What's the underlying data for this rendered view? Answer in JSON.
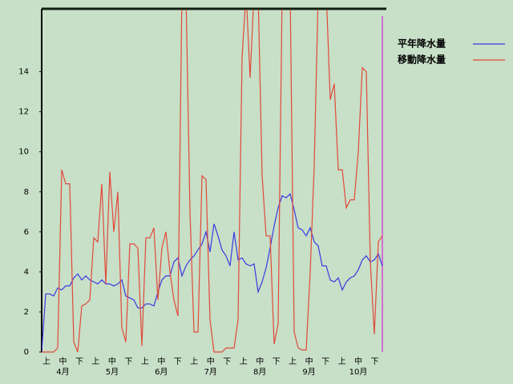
{
  "chart_data": {
    "type": "line",
    "series": [
      {
        "name": "平年降水量",
        "color": "#3a3ae0",
        "values": [
          0,
          2.9,
          2.9,
          2.8,
          3.2,
          3.1,
          3.3,
          3.3,
          3.7,
          3.9,
          3.6,
          3.8,
          3.6,
          3.5,
          3.4,
          3.6,
          3.4,
          3.4,
          3.3,
          3.4,
          3.6,
          2.8,
          2.7,
          2.6,
          2.2,
          2.2,
          2.4,
          2.4,
          2.3,
          3.0,
          3.6,
          3.8,
          3.8,
          4.5,
          4.7,
          3.8,
          4.3,
          4.6,
          4.8,
          5.1,
          5.4,
          6.0,
          5.0,
          6.4,
          5.8,
          5.1,
          4.8,
          4.3,
          6.0,
          4.6,
          4.7,
          4.4,
          4.3,
          4.4,
          3.0,
          3.5,
          4.2,
          5.2,
          6.3,
          7.2,
          7.8,
          7.7,
          7.9,
          7.1,
          6.2,
          6.1,
          5.8,
          6.2,
          5.5,
          5.3,
          4.3,
          4.3,
          3.6,
          3.5,
          3.7,
          3.1,
          3.5,
          3.7,
          3.8,
          4.1,
          4.6,
          4.8,
          4.5,
          4.6,
          4.9,
          4.3
        ]
      },
      {
        "name": "移動降水量",
        "color": "#e04a3a",
        "values": [
          0,
          0,
          0,
          0,
          0.2,
          9.1,
          8.4,
          8.4,
          0.5,
          0,
          2.3,
          2.4,
          2.6,
          5.7,
          5.5,
          8.4,
          3.4,
          9.0,
          6.0,
          8.0,
          1.2,
          0.5,
          5.4,
          5.4,
          5.2,
          0.3,
          5.7,
          5.7,
          6.2,
          2.6,
          5.2,
          6.0,
          4.0,
          2.6,
          1.8,
          18,
          18,
          7.0,
          1.0,
          1.0,
          8.8,
          8.6,
          1.6,
          0,
          0,
          0,
          0.2,
          0.2,
          0.2,
          1.6,
          14.7,
          18,
          13.7,
          18,
          18,
          8.8,
          5.8,
          5.8,
          0.4,
          1.4,
          18,
          18,
          18,
          1.0,
          0.2,
          0.1,
          0.1,
          4.0,
          9.3,
          18,
          18,
          18,
          12.6,
          13.4,
          9.1,
          9.1,
          7.2,
          7.6,
          7.6,
          10.0,
          14.2,
          14.0,
          4.5,
          0.9,
          5.5,
          5.8
        ]
      }
    ],
    "x_tick_labels": [
      "上",
      "中",
      "下",
      "上",
      "中",
      "下",
      "上",
      "中",
      "下",
      "上",
      "中",
      "下",
      "上",
      "中",
      "下",
      "上",
      "中",
      "下",
      "上",
      "中",
      "下"
    ],
    "month_labels": [
      "4月",
      "5月",
      "6月",
      "7月",
      "8月",
      "9月",
      "10月"
    ],
    "ylim": [
      0,
      17.1
    ],
    "yticks": [
      0,
      2,
      4,
      6,
      8,
      10,
      12,
      14
    ]
  }
}
